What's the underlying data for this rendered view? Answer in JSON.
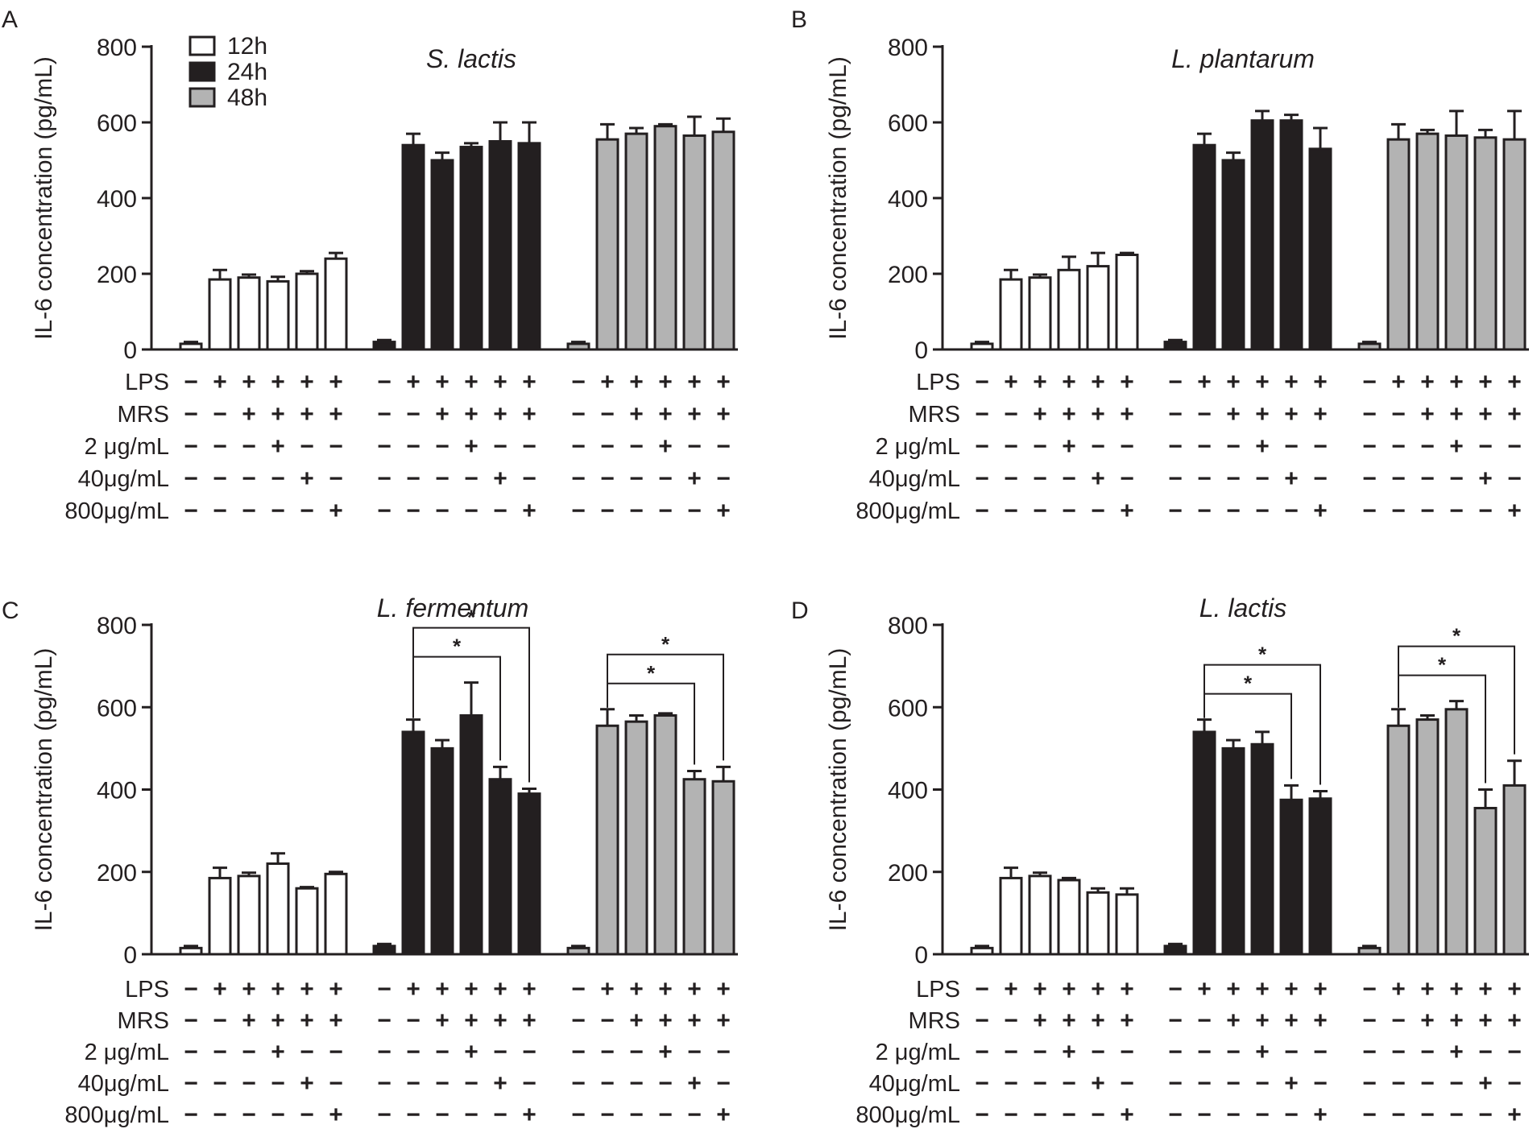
{
  "legend": {
    "entries": [
      {
        "label": "12h",
        "fill": "#ffffff"
      },
      {
        "label": "24h",
        "fill": "#231f20"
      },
      {
        "label": "48h",
        "fill": "#b3b3b3"
      }
    ]
  },
  "colors": {
    "axis": "#231f20",
    "bar_12h": "#ffffff",
    "bar_24h": "#231f20",
    "bar_48h": "#b3b3b3"
  },
  "row_labels": [
    "LPS",
    "MRS",
    "2 μg/mL",
    "40μg/mL",
    "800μg/mL"
  ],
  "treatment_signs": [
    [
      "−",
      "+",
      "+",
      "+",
      "+",
      "+"
    ],
    [
      "−",
      "−",
      "+",
      "+",
      "+",
      "+"
    ],
    [
      "−",
      "−",
      "−",
      "+",
      "−",
      "−"
    ],
    [
      "−",
      "−",
      "−",
      "−",
      "+",
      "−"
    ],
    [
      "−",
      "−",
      "−",
      "−",
      "−",
      "+"
    ]
  ],
  "chart_data": [
    {
      "panel": "A",
      "title": "S. lactis",
      "type": "bar",
      "ylabel": "IL-6 concentration (pg/mL)",
      "ylim": [
        0,
        800
      ],
      "yticks": [
        "0",
        "200",
        "400",
        "600",
        "800"
      ],
      "groups": [
        "12h",
        "24h",
        "48h"
      ],
      "series": [
        {
          "name": "12h",
          "values": [
            15,
            185,
            190,
            180,
            200,
            240
          ],
          "errors": [
            5,
            25,
            8,
            12,
            7,
            15
          ]
        },
        {
          "name": "24h",
          "values": [
            20,
            540,
            500,
            535,
            550,
            545
          ],
          "errors": [
            5,
            30,
            20,
            10,
            50,
            55
          ]
        },
        {
          "name": "48h",
          "values": [
            15,
            555,
            570,
            590,
            565,
            575
          ],
          "errors": [
            5,
            40,
            15,
            5,
            50,
            35
          ]
        }
      ],
      "significance": []
    },
    {
      "panel": "B",
      "title": "L. plantarum",
      "type": "bar",
      "ylabel": "IL-6 concentration (pg/mL)",
      "ylim": [
        0,
        800
      ],
      "yticks": [
        "0",
        "200",
        "400",
        "600",
        "800"
      ],
      "groups": [
        "12h",
        "24h",
        "48h"
      ],
      "series": [
        {
          "name": "12h",
          "values": [
            15,
            185,
            190,
            210,
            220,
            250
          ],
          "errors": [
            5,
            25,
            8,
            35,
            35,
            5
          ]
        },
        {
          "name": "24h",
          "values": [
            20,
            540,
            500,
            605,
            605,
            530
          ],
          "errors": [
            5,
            30,
            20,
            25,
            15,
            55
          ]
        },
        {
          "name": "48h",
          "values": [
            15,
            555,
            570,
            565,
            560,
            555
          ],
          "errors": [
            5,
            40,
            10,
            65,
            20,
            75
          ]
        }
      ],
      "significance": []
    },
    {
      "panel": "C",
      "title": "L. fermentum",
      "type": "bar",
      "ylabel": "IL-6 concentration (pg/mL)",
      "ylim": [
        0,
        800
      ],
      "yticks": [
        "0",
        "200",
        "400",
        "600",
        "800"
      ],
      "groups": [
        "12h",
        "24h",
        "48h"
      ],
      "series": [
        {
          "name": "12h",
          "values": [
            15,
            185,
            190,
            220,
            160,
            195
          ],
          "errors": [
            5,
            25,
            8,
            25,
            3,
            5
          ]
        },
        {
          "name": "24h",
          "values": [
            20,
            540,
            500,
            580,
            425,
            390
          ],
          "errors": [
            5,
            30,
            20,
            80,
            30,
            12
          ]
        },
        {
          "name": "48h",
          "values": [
            15,
            555,
            565,
            580,
            425,
            420
          ],
          "errors": [
            5,
            40,
            15,
            5,
            20,
            35
          ]
        }
      ],
      "significance": [
        {
          "group": "24h",
          "from": 1,
          "to": 4,
          "label": "*"
        },
        {
          "group": "24h",
          "from": 1,
          "to": 5,
          "label": "*"
        },
        {
          "group": "48h",
          "from": 1,
          "to": 4,
          "label": "*"
        },
        {
          "group": "48h",
          "from": 1,
          "to": 5,
          "label": "*"
        }
      ]
    },
    {
      "panel": "D",
      "title": "L. lactis",
      "type": "bar",
      "ylabel": "IL-6 concentration (pg/mL)",
      "ylim": [
        0,
        800
      ],
      "yticks": [
        "0",
        "200",
        "400",
        "600",
        "800"
      ],
      "groups": [
        "12h",
        "24h",
        "48h"
      ],
      "series": [
        {
          "name": "12h",
          "values": [
            15,
            185,
            190,
            180,
            150,
            145
          ],
          "errors": [
            5,
            25,
            8,
            5,
            10,
            15
          ]
        },
        {
          "name": "24h",
          "values": [
            20,
            540,
            500,
            510,
            375,
            378
          ],
          "errors": [
            5,
            30,
            20,
            30,
            35,
            18
          ]
        },
        {
          "name": "48h",
          "values": [
            15,
            555,
            570,
            595,
            355,
            410
          ],
          "errors": [
            5,
            40,
            10,
            20,
            45,
            60
          ]
        }
      ],
      "significance": [
        {
          "group": "24h",
          "from": 1,
          "to": 4,
          "label": "*"
        },
        {
          "group": "24h",
          "from": 1,
          "to": 5,
          "label": "*"
        },
        {
          "group": "48h",
          "from": 1,
          "to": 4,
          "label": "*"
        },
        {
          "group": "48h",
          "from": 1,
          "to": 5,
          "label": "*"
        }
      ]
    }
  ]
}
